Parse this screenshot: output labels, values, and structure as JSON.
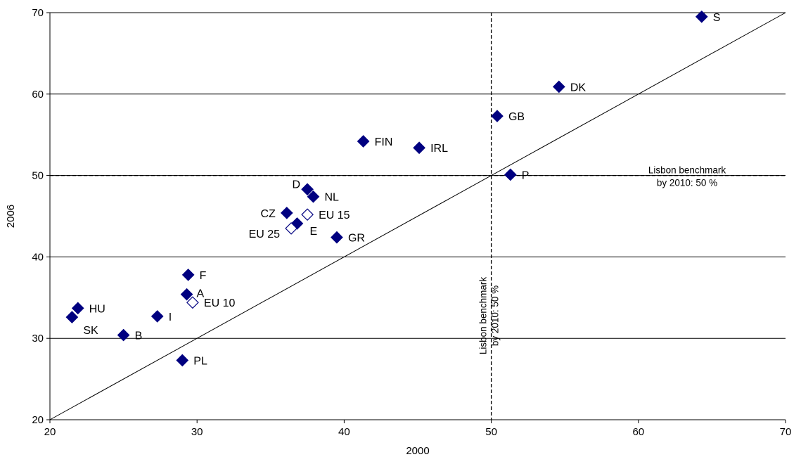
{
  "chart_data": {
    "type": "scatter",
    "xlabel": "2000",
    "ylabel": "2006",
    "xlim": [
      20,
      70
    ],
    "ylim": [
      20,
      70
    ],
    "x_ticks": [
      20,
      30,
      40,
      50,
      60,
      70
    ],
    "y_ticks": [
      20,
      30,
      40,
      50,
      60,
      70
    ],
    "grid": "horizontal",
    "diagonal": true,
    "benchmark_value": 50,
    "benchmark_label_line1": "Lisbon benchmark",
    "benchmark_label_line2": "by 2010: 50 %",
    "series": [
      {
        "style": "filled",
        "color": "#000080",
        "points": [
          {
            "label": "S",
            "x": 64.3,
            "y": 69.5
          },
          {
            "label": "DK",
            "x": 54.6,
            "y": 60.9
          },
          {
            "label": "GB",
            "x": 50.4,
            "y": 57.3
          },
          {
            "label": "FIN",
            "x": 41.3,
            "y": 54.2
          },
          {
            "label": "IRL",
            "x": 45.1,
            "y": 53.4
          },
          {
            "label": "P",
            "x": 51.3,
            "y": 50.1
          },
          {
            "label": "D",
            "x": 37.5,
            "y": 48.3
          },
          {
            "label": "NL",
            "x": 37.9,
            "y": 47.4
          },
          {
            "label": "CZ",
            "x": 36.1,
            "y": 45.4
          },
          {
            "label": "E",
            "x": 36.8,
            "y": 44.1
          },
          {
            "label": "GR",
            "x": 39.5,
            "y": 42.4
          },
          {
            "label": "F",
            "x": 29.4,
            "y": 37.8
          },
          {
            "label": "A",
            "x": 29.3,
            "y": 35.4
          },
          {
            "label": "HU",
            "x": 21.9,
            "y": 33.7
          },
          {
            "label": "SK",
            "x": 21.5,
            "y": 32.6
          },
          {
            "label": "I",
            "x": 27.3,
            "y": 32.7
          },
          {
            "label": "B",
            "x": 25.0,
            "y": 30.4
          },
          {
            "label": "PL",
            "x": 29.0,
            "y": 27.3
          }
        ]
      },
      {
        "style": "hollow",
        "color": "#000080",
        "points": [
          {
            "label": "EU 15",
            "x": 37.5,
            "y": 45.2
          },
          {
            "label": "EU 25",
            "x": 36.4,
            "y": 43.5
          },
          {
            "label": "EU 10",
            "x": 29.7,
            "y": 34.4
          }
        ]
      }
    ]
  }
}
